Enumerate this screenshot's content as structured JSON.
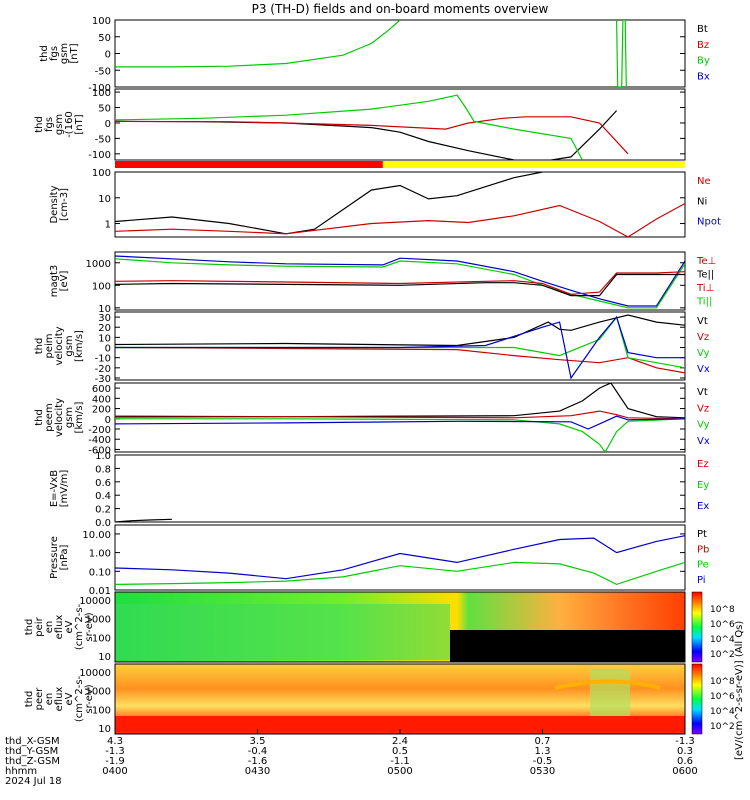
{
  "title": "P3 (TH-D) fields and on-board moments overview",
  "chart_data": [
    {
      "type": "line",
      "panel": "fgs",
      "ylabel": [
        "thd",
        "fgs",
        "gsm",
        "[nT]"
      ],
      "yticks": [
        "100",
        "50",
        "0",
        "-50",
        "-100"
      ],
      "ylim": [
        -100,
        100
      ],
      "legend": [
        {
          "name": "Bt",
          "color": "#000000"
        },
        {
          "name": "Bz",
          "color": "#cc0000"
        },
        {
          "name": "By",
          "color": "#00cc00"
        },
        {
          "name": "Bx",
          "color": "#0000cc"
        }
      ],
      "series": [
        {
          "name": "By",
          "color": "#00cc00",
          "x": [
            0.0,
            0.1,
            0.2,
            0.3,
            0.4,
            0.45,
            0.48,
            0.5
          ],
          "y": [
            -40,
            -40,
            -38,
            -30,
            -5,
            30,
            70,
            100
          ]
        },
        {
          "name": "By",
          "color": "#00cc00",
          "x": [
            0.88,
            0.882,
            0.889,
            0.891,
            0.895,
            0.897
          ],
          "y": [
            100,
            -100,
            -100,
            100,
            100,
            -100
          ]
        }
      ]
    },
    {
      "type": "line",
      "panel": "fgs_dsl",
      "ylabel": [
        "thd",
        "fgs",
        "gsm",
        "-(160",
        "[nT]"
      ],
      "yticks": [
        "100",
        "50",
        "0",
        "-50",
        "-100"
      ],
      "ylim": [
        -120,
        110
      ],
      "series": [
        {
          "name": "Bt",
          "color": "#000000",
          "x": [
            0.0,
            0.15,
            0.3,
            0.45,
            0.5,
            0.55,
            0.62,
            0.7,
            0.75,
            0.8,
            0.85,
            0.88
          ],
          "y": [
            5,
            4,
            0,
            -15,
            -30,
            -60,
            -90,
            -120,
            -150,
            -110,
            -20,
            40
          ]
        },
        {
          "name": "Bz",
          "color": "#cc0000",
          "x": [
            0.0,
            0.2,
            0.3,
            0.45,
            0.58,
            0.62,
            0.68,
            0.72,
            0.8,
            0.85,
            0.9
          ],
          "y": [
            5,
            4,
            0,
            -8,
            -20,
            0,
            15,
            20,
            20,
            0,
            -100
          ]
        },
        {
          "name": "By",
          "color": "#00cc00",
          "x": [
            0.0,
            0.15,
            0.3,
            0.45,
            0.55,
            0.6,
            0.615,
            0.63,
            0.7,
            0.8,
            0.82
          ],
          "y": [
            10,
            15,
            25,
            45,
            70,
            90,
            50,
            5,
            -20,
            -50,
            -120
          ]
        }
      ]
    },
    {
      "type": "bar",
      "panel": "status",
      "segments": [
        {
          "from": 0.0,
          "to": 0.47,
          "color": "#ff0000"
        },
        {
          "from": 0.47,
          "to": 1.0,
          "color": "#ffff00"
        }
      ]
    },
    {
      "type": "line",
      "panel": "density",
      "scale": "log",
      "ylabel": [
        "Density",
        "[cm-3]"
      ],
      "yticks": [
        "100",
        "10",
        "1"
      ],
      "ylim": [
        0.3,
        100
      ],
      "legend": [
        {
          "name": "Ne",
          "color": "#cc0000"
        },
        {
          "name": "Ni",
          "color": "#000000"
        },
        {
          "name": "Npot",
          "color": "#0000cc"
        }
      ],
      "series": [
        {
          "name": "Ni",
          "color": "#000000",
          "x": [
            0.0,
            0.1,
            0.2,
            0.3,
            0.35,
            0.45,
            0.5,
            0.55,
            0.6,
            0.7,
            0.75
          ],
          "y": [
            1.2,
            1.8,
            1.0,
            0.4,
            0.6,
            20,
            30,
            9,
            12,
            60,
            100
          ]
        },
        {
          "name": "Ne",
          "color": "#cc0000",
          "x": [
            0.0,
            0.1,
            0.2,
            0.3,
            0.45,
            0.55,
            0.62,
            0.7,
            0.78,
            0.85,
            0.9,
            0.95,
            1.0
          ],
          "y": [
            0.5,
            0.6,
            0.5,
            0.4,
            1.0,
            1.3,
            1.1,
            2.0,
            5,
            1.2,
            0.3,
            1.5,
            6
          ]
        }
      ]
    },
    {
      "type": "line",
      "panel": "temperature",
      "scale": "log",
      "ylabel": [
        "magt3",
        "[eV]"
      ],
      "yticks": [
        "1000",
        "100",
        "10"
      ],
      "ylim": [
        8,
        3000
      ],
      "legend": [
        {
          "name": "Te⊥",
          "color": "#cc0000"
        },
        {
          "name": "Te||",
          "color": "#000000"
        },
        {
          "name": "Ti⊥",
          "color": "#cc0000"
        },
        {
          "name": "Ti||",
          "color": "#00cc00"
        }
      ],
      "series": [
        {
          "name": "Ti⊥",
          "color": "#0000cc",
          "x": [
            0.0,
            0.1,
            0.2,
            0.3,
            0.47,
            0.5,
            0.6,
            0.7,
            0.75,
            0.8,
            0.85,
            0.9,
            0.95,
            1.0
          ],
          "y": [
            2000,
            1500,
            1100,
            900,
            800,
            1600,
            1200,
            400,
            150,
            60,
            25,
            12,
            12,
            1200
          ]
        },
        {
          "name": "Ti||",
          "color": "#00cc00",
          "x": [
            0.0,
            0.1,
            0.2,
            0.3,
            0.47,
            0.5,
            0.6,
            0.7,
            0.75,
            0.8,
            0.85,
            0.9,
            0.95,
            1.0
          ],
          "y": [
            1500,
            1000,
            800,
            700,
            650,
            1200,
            900,
            300,
            100,
            40,
            20,
            10,
            10,
            900
          ]
        },
        {
          "name": "Te⊥",
          "color": "#cc0000",
          "x": [
            0.0,
            0.1,
            0.3,
            0.5,
            0.65,
            0.7,
            0.75,
            0.8,
            0.85,
            0.88,
            0.95,
            1.0
          ],
          "y": [
            150,
            160,
            140,
            120,
            150,
            160,
            120,
            40,
            50,
            350,
            350,
            400
          ]
        },
        {
          "name": "Te||",
          "color": "#000000",
          "x": [
            0.0,
            0.1,
            0.3,
            0.5,
            0.65,
            0.7,
            0.75,
            0.8,
            0.85,
            0.88,
            0.95,
            1.0
          ],
          "y": [
            110,
            120,
            110,
            100,
            130,
            130,
            100,
            35,
            35,
            300,
            300,
            300
          ]
        }
      ]
    },
    {
      "type": "line",
      "panel": "ion_velocity",
      "ylabel": [
        "thd",
        "peim",
        "velocity",
        "gsm",
        "[km/s]"
      ],
      "yticks": [
        "30",
        "20",
        "10",
        "0",
        "-10",
        "-20",
        "-30"
      ],
      "ylim": [
        -32,
        35
      ],
      "legend": [
        {
          "name": "Vt",
          "color": "#000000"
        },
        {
          "name": "Vz",
          "color": "#cc0000"
        },
        {
          "name": "Vy",
          "color": "#00cc00"
        },
        {
          "name": "Vx",
          "color": "#0000cc"
        }
      ],
      "series": [
        {
          "name": "Vt",
          "color": "#000000",
          "x": [
            0.0,
            0.3,
            0.6,
            0.7,
            0.76,
            0.78,
            0.8,
            0.85,
            0.9,
            0.95,
            1.0
          ],
          "y": [
            3,
            4,
            2,
            10,
            25,
            18,
            17,
            25,
            32,
            25,
            22
          ]
        },
        {
          "name": "Vz",
          "color": "#cc0000",
          "x": [
            0.0,
            0.3,
            0.6,
            0.7,
            0.78,
            0.85,
            0.9,
            0.95,
            1.0
          ],
          "y": [
            0,
            -1,
            -2,
            -8,
            -12,
            -15,
            -10,
            -20,
            -25
          ]
        },
        {
          "name": "Vy",
          "color": "#00cc00",
          "x": [
            0.0,
            0.5,
            0.7,
            0.78,
            0.85,
            0.88,
            0.9,
            0.95,
            1.0
          ],
          "y": [
            0,
            0,
            0,
            -8,
            8,
            30,
            -10,
            -15,
            -20
          ]
        },
        {
          "name": "Vx",
          "color": "#0000cc",
          "x": [
            0.0,
            0.5,
            0.65,
            0.75,
            0.78,
            0.8,
            0.85,
            0.88,
            0.9,
            0.95,
            1.0
          ],
          "y": [
            0,
            0,
            2,
            20,
            25,
            -30,
            10,
            30,
            -5,
            -10,
            -10
          ]
        }
      ]
    },
    {
      "type": "line",
      "panel": "electron_velocity",
      "ylabel": [
        "thd",
        "peem",
        "velocity",
        "gsm",
        "[km/s]"
      ],
      "yticks": [
        "600",
        "400",
        "200",
        "0",
        "-200",
        "-400",
        "-600"
      ],
      "ylim": [
        -650,
        700
      ],
      "legend": [
        {
          "name": "Vt",
          "color": "#000000"
        },
        {
          "name": "Vz",
          "color": "#cc0000"
        },
        {
          "name": "Vy",
          "color": "#00cc00"
        },
        {
          "name": "Vx",
          "color": "#0000cc"
        }
      ],
      "series": [
        {
          "name": "Vt",
          "color": "#000000",
          "x": [
            0.0,
            0.3,
            0.7,
            0.78,
            0.82,
            0.85,
            0.87,
            0.9,
            0.95,
            1.0
          ],
          "y": [
            50,
            40,
            60,
            150,
            350,
            600,
            700,
            200,
            40,
            20
          ]
        },
        {
          "name": "Vz",
          "color": "#cc0000",
          "x": [
            0.0,
            0.3,
            0.7,
            0.8,
            0.85,
            0.88,
            0.9,
            1.0
          ],
          "y": [
            30,
            40,
            20,
            60,
            150,
            80,
            20,
            0
          ]
        },
        {
          "name": "Vy",
          "color": "#00cc00",
          "x": [
            0.0,
            0.3,
            0.7,
            0.78,
            0.82,
            0.85,
            0.86,
            0.88,
            0.9,
            1.0
          ],
          "y": [
            0,
            0,
            -20,
            -100,
            -250,
            -500,
            -650,
            -250,
            -50,
            0
          ]
        },
        {
          "name": "Vx",
          "color": "#0000cc",
          "x": [
            0.0,
            0.3,
            0.6,
            0.8,
            0.83,
            0.85,
            0.88,
            0.9,
            1.0
          ],
          "y": [
            -100,
            -80,
            -50,
            -60,
            -200,
            -100,
            50,
            -20,
            0
          ]
        }
      ]
    },
    {
      "type": "line",
      "panel": "efield",
      "ylabel": [
        "E=-VxB",
        "[mV/m]"
      ],
      "yticks": [
        "1.0",
        "0.8",
        "0.6",
        "0.4",
        "0.2",
        "0.0"
      ],
      "ylim": [
        0.0,
        1.0
      ],
      "legend": [
        {
          "name": "Ez",
          "color": "#cc0000"
        },
        {
          "name": "Ey",
          "color": "#00cc00"
        },
        {
          "name": "Ex",
          "color": "#0000cc"
        }
      ],
      "series": [
        {
          "name": "E",
          "color": "#000000",
          "x": [
            0.0,
            0.03,
            0.06,
            0.1
          ],
          "y": [
            0.0,
            0.02,
            0.03,
            0.04
          ]
        }
      ]
    },
    {
      "type": "line",
      "panel": "pressure",
      "scale": "log",
      "ylabel": [
        "Pressure",
        "[nPa]"
      ],
      "yticks": [
        "10.00",
        "1.00",
        "0.10",
        "0.01"
      ],
      "ylim": [
        0.01,
        30
      ],
      "legend": [
        {
          "name": "Pt",
          "color": "#000000"
        },
        {
          "name": "Pb",
          "color": "#cc0000"
        },
        {
          "name": "Pe",
          "color": "#00cc00"
        },
        {
          "name": "Pi",
          "color": "#0000cc"
        }
      ],
      "series": [
        {
          "name": "Pi",
          "color": "#0000cc",
          "x": [
            0.0,
            0.1,
            0.2,
            0.3,
            0.4,
            0.5,
            0.6,
            0.7,
            0.78,
            0.84,
            0.88,
            0.95,
            1.0
          ],
          "y": [
            0.15,
            0.12,
            0.08,
            0.04,
            0.12,
            0.9,
            0.3,
            1.5,
            5,
            6,
            1.0,
            4,
            8
          ]
        },
        {
          "name": "Pe",
          "color": "#00cc00",
          "x": [
            0.0,
            0.1,
            0.2,
            0.3,
            0.4,
            0.5,
            0.6,
            0.7,
            0.78,
            0.84,
            0.88,
            0.95,
            1.0
          ],
          "y": [
            0.02,
            0.022,
            0.025,
            0.03,
            0.05,
            0.2,
            0.1,
            0.3,
            0.25,
            0.08,
            0.02,
            0.1,
            0.3
          ]
        }
      ]
    },
    {
      "type": "heatmap",
      "panel": "peir",
      "ylabel": [
        "thd",
        "peir",
        "en",
        "eflux",
        "eV",
        "(cm^2-s-",
        "sr-eV)"
      ],
      "yticks": [
        "10000",
        "1000",
        "100",
        "10"
      ]
    },
    {
      "type": "heatmap",
      "panel": "peer",
      "ylabel": [
        "thd",
        "peer",
        "en",
        "eflux",
        "eV",
        "(cm^2-s-",
        "sr-eV)"
      ],
      "yticks": [
        "10000",
        "1000",
        "100",
        "10"
      ]
    }
  ],
  "colorbar": {
    "label": "[eV/(cm^2-s-sr-eV)] (All Qs)",
    "ticks_top": [
      "10^8",
      "10^6",
      "10^4",
      "10^2"
    ],
    "ticks_bottom": [
      "10^8",
      "10^6",
      "10^4",
      "10^2"
    ]
  },
  "x_axis": {
    "row_labels": [
      "thd_X-GSM",
      "thd_Y-GSM",
      "thd_Z-GSM",
      "hhmm",
      "2024 Jul 18"
    ],
    "columns": [
      {
        "x": "4.3",
        "y": "-1.3",
        "z": "-1.9",
        "hhmm": "0400"
      },
      {
        "x": "3.5",
        "y": "-0.4",
        "z": "-1.6",
        "hhmm": "0430"
      },
      {
        "x": "2.4",
        "y": "0.5",
        "z": "-1.1",
        "hhmm": "0500"
      },
      {
        "x": "0.7",
        "y": "1.3",
        "z": "-0.5",
        "hhmm": "0530"
      },
      {
        "x": "-1.3",
        "y": "0.3",
        "z": "0.6",
        "hhmm": "0600"
      }
    ]
  }
}
